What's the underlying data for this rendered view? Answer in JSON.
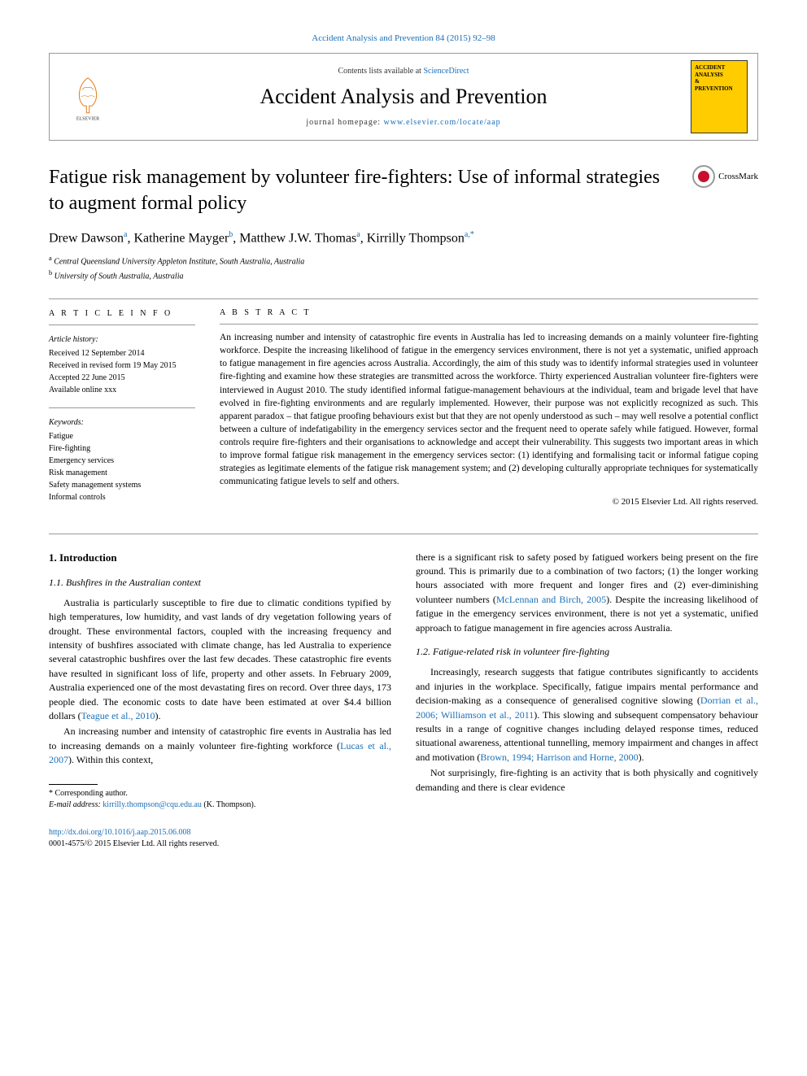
{
  "header": {
    "citation": "Accident Analysis and Prevention 84 (2015) 92–98",
    "contents_prefix": "Contents lists available at ",
    "contents_link": "ScienceDirect",
    "journal_name": "Accident Analysis and Prevention",
    "homepage_prefix": "journal homepage: ",
    "homepage_url": "www.elsevier.com/locate/aap",
    "cover_lines": [
      "ACCIDENT",
      "ANALYSIS",
      "&",
      "PREVENTION"
    ]
  },
  "crossmark_label": "CrossMark",
  "title": "Fatigue risk management by volunteer fire-fighters: Use of informal strategies to augment formal policy",
  "authors_html": "Drew Dawson<sup>a</sup>, Katherine Mayger<sup>b</sup>, Matthew J.W. Thomas<sup>a</sup>, Kirrilly Thompson<sup>a,*</sup>",
  "affiliations": [
    "a Central Queensland University Appleton Institute, South Australia, Australia",
    "b University of South Australia, Australia"
  ],
  "article_info": {
    "heading": "A R T I C L E   I N F O",
    "history_heading": "Article history:",
    "history": [
      "Received 12 September 2014",
      "Received in revised form 19 May 2015",
      "Accepted 22 June 2015",
      "Available online xxx"
    ],
    "keywords_heading": "Keywords:",
    "keywords": [
      "Fatigue",
      "Fire-fighting",
      "Emergency services",
      "Risk management",
      "Safety management systems",
      "Informal controls"
    ]
  },
  "abstract": {
    "heading": "A B S T R A C T",
    "text": "An increasing number and intensity of catastrophic fire events in Australia has led to increasing demands on a mainly volunteer fire-fighting workforce. Despite the increasing likelihood of fatigue in the emergency services environment, there is not yet a systematic, unified approach to fatigue management in fire agencies across Australia. Accordingly, the aim of this study was to identify informal strategies used in volunteer fire-fighting and examine how these strategies are transmitted across the workforce. Thirty experienced Australian volunteer fire-fighters were interviewed in August 2010. The study identified informal fatigue-management behaviours at the individual, team and brigade level that have evolved in fire-fighting environments and are regularly implemented. However, their purpose was not explicitly recognized as such. This apparent paradox – that fatigue proofing behaviours exist but that they are not openly understood as such – may well resolve a potential conflict between a culture of indefatigability in the emergency services sector and the frequent need to operate safely while fatigued. However, formal controls require fire-fighters and their organisations to acknowledge and accept their vulnerability. This suggests two important areas in which to improve formal fatigue risk management in the emergency services sector: (1) identifying and formalising tacit or informal fatigue coping strategies as legitimate elements of the fatigue risk management system; and (2) developing culturally appropriate techniques for systematically communicating fatigue levels to self and others.",
    "copyright": "© 2015 Elsevier Ltd. All rights reserved."
  },
  "body": {
    "section1_heading": "1. Introduction",
    "section1_1_heading": "1.1. Bushfires in the Australian context",
    "p1": "Australia is particularly susceptible to fire due to climatic conditions typified by high temperatures, low humidity, and vast lands of dry vegetation following years of drought. These environmental factors, coupled with the increasing frequency and intensity of bushfires associated with climate change, has led Australia to experience several catastrophic bushfires over the last few decades. These catastrophic fire events have resulted in significant loss of life, property and other assets. In February 2009, Australia experienced one of the most devastating fires on record. Over three days, 173 people died. The economic costs to date have been estimated at over $4.4 billion dollars (",
    "p1_cite": "Teague et al., 2010",
    "p1_end": ").",
    "p2": "An increasing number and intensity of catastrophic fire events in Australia has led to increasing demands on a mainly volunteer fire-fighting workforce (",
    "p2_cite": "Lucas et al., 2007",
    "p2_end": "). Within this context,",
    "p3": "there is a significant risk to safety posed by fatigued workers being present on the fire ground. This is primarily due to a combination of two factors; (1) the longer working hours associated with more frequent and longer fires and (2) ever-diminishing volunteer numbers (",
    "p3_cite": "McLennan and Birch, 2005",
    "p3_end": "). Despite the increasing likelihood of fatigue in the emergency services environment, there is not yet a systematic, unified approach to fatigue management in fire agencies across Australia.",
    "section1_2_heading": "1.2. Fatigue-related risk in volunteer fire-fighting",
    "p4": "Increasingly, research suggests that fatigue contributes significantly to accidents and injuries in the workplace. Specifically, fatigue impairs mental performance and decision-making as a consequence of generalised cognitive slowing (",
    "p4_cite": "Dorrian et al., 2006; Williamson et al., 2011",
    "p4_end": "). This slowing and subsequent compensatory behaviour results in a range of cognitive changes including delayed response times, reduced situational awareness, attentional tunnelling, memory impairment and changes in affect and motivation (",
    "p4_cite2": "Brown, 1994; Harrison and Horne, 2000",
    "p4_end2": ").",
    "p5": "Not surprisingly, fire-fighting is an activity that is both physically and cognitively demanding and there is clear evidence"
  },
  "footnote": {
    "marker": "* Corresponding author.",
    "email_label": "E-mail address: ",
    "email": "kirrilly.thompson@cqu.edu.au",
    "email_suffix": " (K. Thompson)."
  },
  "bottom": {
    "doi": "http://dx.doi.org/10.1016/j.aap.2015.06.008",
    "issn_line": "0001-4575/© 2015 Elsevier Ltd. All rights reserved."
  },
  "colors": {
    "link": "#1a6fb8",
    "cover_bg": "#ffcc00",
    "text": "#000000",
    "rule": "#999999"
  }
}
